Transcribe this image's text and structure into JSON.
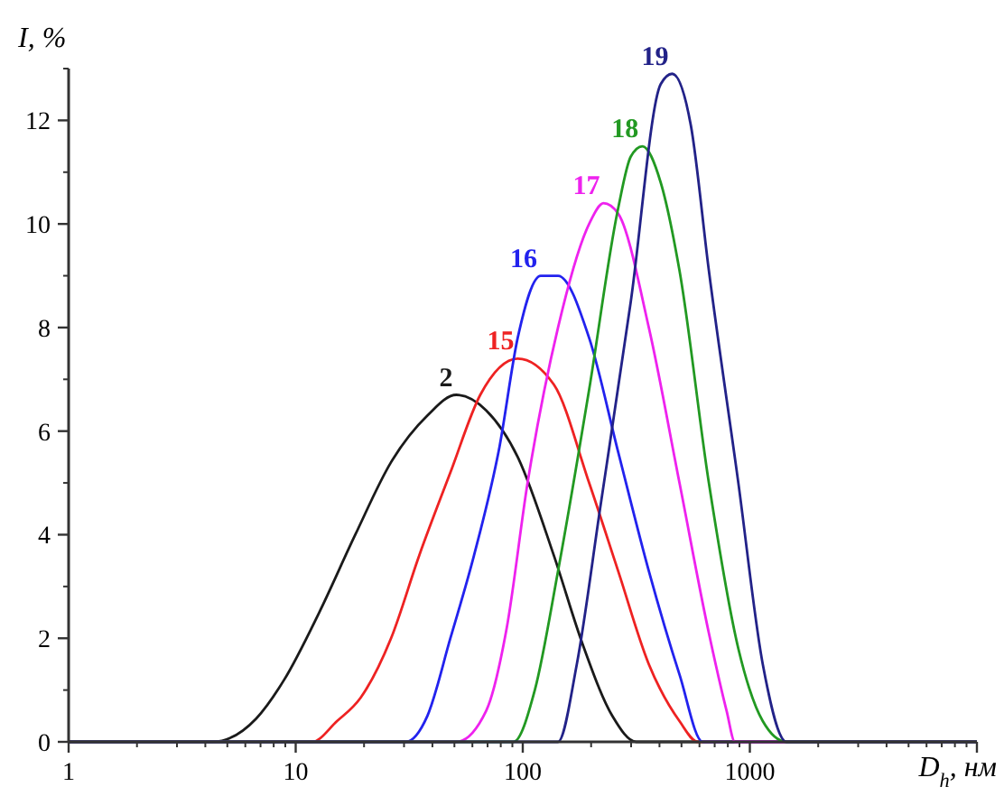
{
  "chart_data": {
    "type": "line",
    "xlabel": "D$_{h}$, нм",
    "ylabel": "I, %",
    "log": "x",
    "xlim": [
      1,
      10000
    ],
    "xticks": [
      1,
      10,
      100,
      1000,
      {
        "value": 10000,
        "label": null
      }
    ],
    "ylim": [
      0,
      13
    ],
    "yticks": [
      0,
      2,
      4,
      6,
      8,
      10,
      12
    ],
    "grid": false,
    "marker": "none",
    "line_style": "solid",
    "series": [
      {
        "name": "2",
        "color": "#1a1a1a",
        "x": [
          1,
          4.3,
          6.7,
          8.9,
          12.7,
          18.3,
          26.3,
          38,
          51,
          69,
          95,
          137,
          183,
          248,
          316,
          10000
        ],
        "values": [
          0,
          0,
          0.45,
          1.2,
          2.5,
          4.0,
          5.4,
          6.3,
          6.7,
          6.4,
          5.5,
          3.6,
          1.9,
          0.5,
          0,
          0
        ]
      },
      {
        "name": "15",
        "color": "#ee2222",
        "x": [
          1,
          11.8,
          15.2,
          19.3,
          26.3,
          35,
          48,
          65,
          95,
          137,
          196,
          263,
          359,
          490,
          590,
          10000
        ],
        "values": [
          0,
          0,
          0.4,
          0.85,
          2.0,
          3.6,
          5.2,
          6.7,
          7.4,
          6.9,
          5.0,
          3.3,
          1.5,
          0.4,
          0,
          0
        ]
      },
      {
        "name": "16",
        "color": "#2222ee",
        "x": [
          1,
          30.5,
          38,
          48,
          61,
          79,
          95,
          120,
          143,
          196,
          263,
          359,
          490,
          620,
          10000
        ],
        "values": [
          0,
          0,
          0.5,
          2.0,
          3.6,
          5.7,
          7.8,
          9.0,
          9.0,
          7.8,
          5.6,
          3.3,
          1.3,
          0,
          0
        ]
      },
      {
        "name": "17",
        "color": "#ee22ee",
        "x": [
          1,
          51,
          69,
          85,
          105,
          143,
          196,
          227,
          263,
          359,
          490,
          660,
          790,
          860,
          10000
        ],
        "values": [
          0,
          0,
          0.6,
          2.2,
          5.0,
          8.0,
          10.0,
          10.4,
          10.2,
          8.0,
          5.0,
          2.1,
          0.6,
          0,
          0
        ]
      },
      {
        "name": "18",
        "color": "#229922",
        "x": [
          1,
          91,
          113,
          143,
          196,
          263,
          299,
          336,
          405,
          490,
          660,
          890,
          1140,
          1450,
          10000
        ],
        "values": [
          0,
          0,
          1.0,
          3.3,
          6.8,
          10.3,
          11.3,
          11.5,
          10.8,
          9.1,
          5.0,
          1.8,
          0.4,
          0,
          0
        ]
      },
      {
        "name": "19",
        "color": "#222288",
        "x": [
          1,
          143,
          173,
          219,
          299,
          405,
          455,
          550,
          660,
          890,
          1140,
          1450,
          10000
        ],
        "values": [
          0,
          0,
          1.5,
          4.5,
          8.5,
          12.7,
          12.9,
          11.9,
          9.1,
          5.0,
          1.5,
          0,
          0
        ]
      }
    ]
  }
}
